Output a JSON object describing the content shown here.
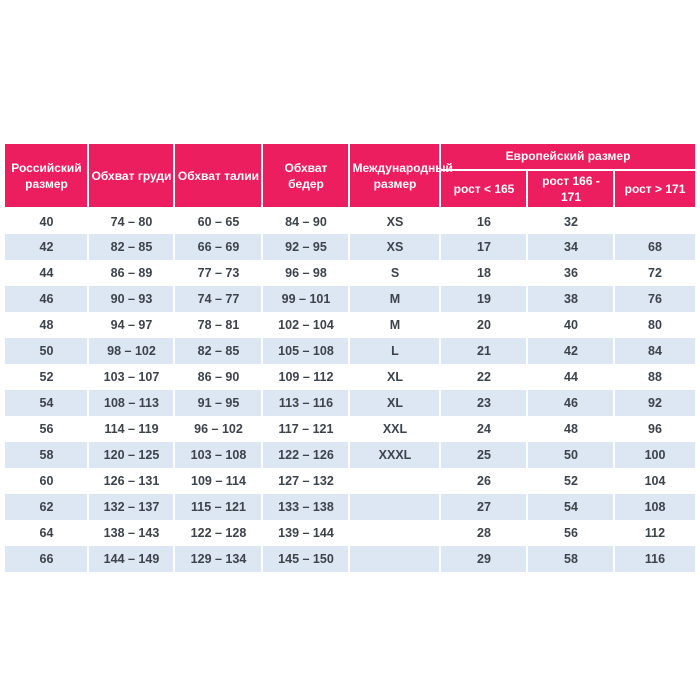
{
  "colors": {
    "header_bg": "#ec1e5f",
    "header_text": "#ffffff",
    "stripe_bg": "#dce7f3",
    "body_text": "#3d434b"
  },
  "table": {
    "headers": {
      "russian_size": "Российский размер",
      "chest": "Обхват груди",
      "waist": "Обхват талии",
      "hips": "Обхват бедер",
      "international": "Международный размер",
      "european_group": "Европейский размер",
      "height_lt_165": "рост < 165",
      "height_166_171": "рост 166 - 171",
      "height_gt_171": "рост > 171"
    },
    "rows": [
      [
        "40",
        "74 – 80",
        "60 – 65",
        "84 – 90",
        "XS",
        "16",
        "32",
        ""
      ],
      [
        "42",
        "82 – 85",
        "66 – 69",
        "92 – 95",
        "XS",
        "17",
        "34",
        "68"
      ],
      [
        "44",
        "86 – 89",
        "77 – 73",
        "96 – 98",
        "S",
        "18",
        "36",
        "72"
      ],
      [
        "46",
        "90 – 93",
        "74 – 77",
        "99 – 101",
        "M",
        "19",
        "38",
        "76"
      ],
      [
        "48",
        "94 – 97",
        "78 – 81",
        "102 – 104",
        "M",
        "20",
        "40",
        "80"
      ],
      [
        "50",
        "98 – 102",
        "82 – 85",
        "105 – 108",
        "L",
        "21",
        "42",
        "84"
      ],
      [
        "52",
        "103 – 107",
        "86 – 90",
        "109 – 112",
        "XL",
        "22",
        "44",
        "88"
      ],
      [
        "54",
        "108 – 113",
        "91 – 95",
        "113 – 116",
        "XL",
        "23",
        "46",
        "92"
      ],
      [
        "56",
        "114 – 119",
        "96 – 102",
        "117 – 121",
        "XXL",
        "24",
        "48",
        "96"
      ],
      [
        "58",
        "120 – 125",
        "103 – 108",
        "122 – 126",
        "XXXL",
        "25",
        "50",
        "100"
      ],
      [
        "60",
        "126 – 131",
        "109 – 114",
        "127 – 132",
        "",
        "26",
        "52",
        "104"
      ],
      [
        "62",
        "132 – 137",
        "115 – 121",
        "133 – 138",
        "",
        "27",
        "54",
        "108"
      ],
      [
        "64",
        "138 – 143",
        "122 – 128",
        "139 – 144",
        "",
        "28",
        "56",
        "112"
      ],
      [
        "66",
        "144 – 149",
        "129 – 134",
        "145 – 150",
        "",
        "29",
        "58",
        "116"
      ]
    ]
  },
  "chart_data": {
    "type": "table",
    "title": "",
    "columns": [
      "Российский размер",
      "Обхват груди",
      "Обхват талии",
      "Обхват бедер",
      "Международный размер",
      "Европейский размер — рост < 165",
      "Европейский размер — рост 166 - 171",
      "Европейский размер — рост > 171"
    ],
    "rows": [
      [
        "40",
        "74 – 80",
        "60 – 65",
        "84 – 90",
        "XS",
        "16",
        "32",
        ""
      ],
      [
        "42",
        "82 – 85",
        "66 – 69",
        "92 – 95",
        "XS",
        "17",
        "34",
        "68"
      ],
      [
        "44",
        "86 – 89",
        "77 – 73",
        "96 – 98",
        "S",
        "18",
        "36",
        "72"
      ],
      [
        "46",
        "90 – 93",
        "74 – 77",
        "99 – 101",
        "M",
        "19",
        "38",
        "76"
      ],
      [
        "48",
        "94 – 97",
        "78 – 81",
        "102 – 104",
        "M",
        "20",
        "40",
        "80"
      ],
      [
        "50",
        "98 – 102",
        "82 – 85",
        "105 – 108",
        "L",
        "21",
        "42",
        "84"
      ],
      [
        "52",
        "103 – 107",
        "86 – 90",
        "109 – 112",
        "XL",
        "22",
        "44",
        "88"
      ],
      [
        "54",
        "108 – 113",
        "91 – 95",
        "113 – 116",
        "XL",
        "23",
        "46",
        "92"
      ],
      [
        "56",
        "114 – 119",
        "96 – 102",
        "117 – 121",
        "XXL",
        "24",
        "48",
        "96"
      ],
      [
        "58",
        "120 – 125",
        "103 – 108",
        "122 – 126",
        "XXXL",
        "25",
        "50",
        "100"
      ],
      [
        "60",
        "126 – 131",
        "109 – 114",
        "127 – 132",
        "",
        "26",
        "52",
        "104"
      ],
      [
        "62",
        "132 – 137",
        "115 – 121",
        "133 – 138",
        "",
        "27",
        "54",
        "108"
      ],
      [
        "64",
        "138 – 143",
        "122 – 128",
        "139 – 144",
        "",
        "28",
        "56",
        "112"
      ],
      [
        "66",
        "144 – 149",
        "129 – 134",
        "145 – 150",
        "",
        "29",
        "58",
        "116"
      ]
    ],
    "layout": {
      "striped_rows": true,
      "header_background": "#ec1e5f",
      "stripe_background": "#dce7f3"
    }
  }
}
